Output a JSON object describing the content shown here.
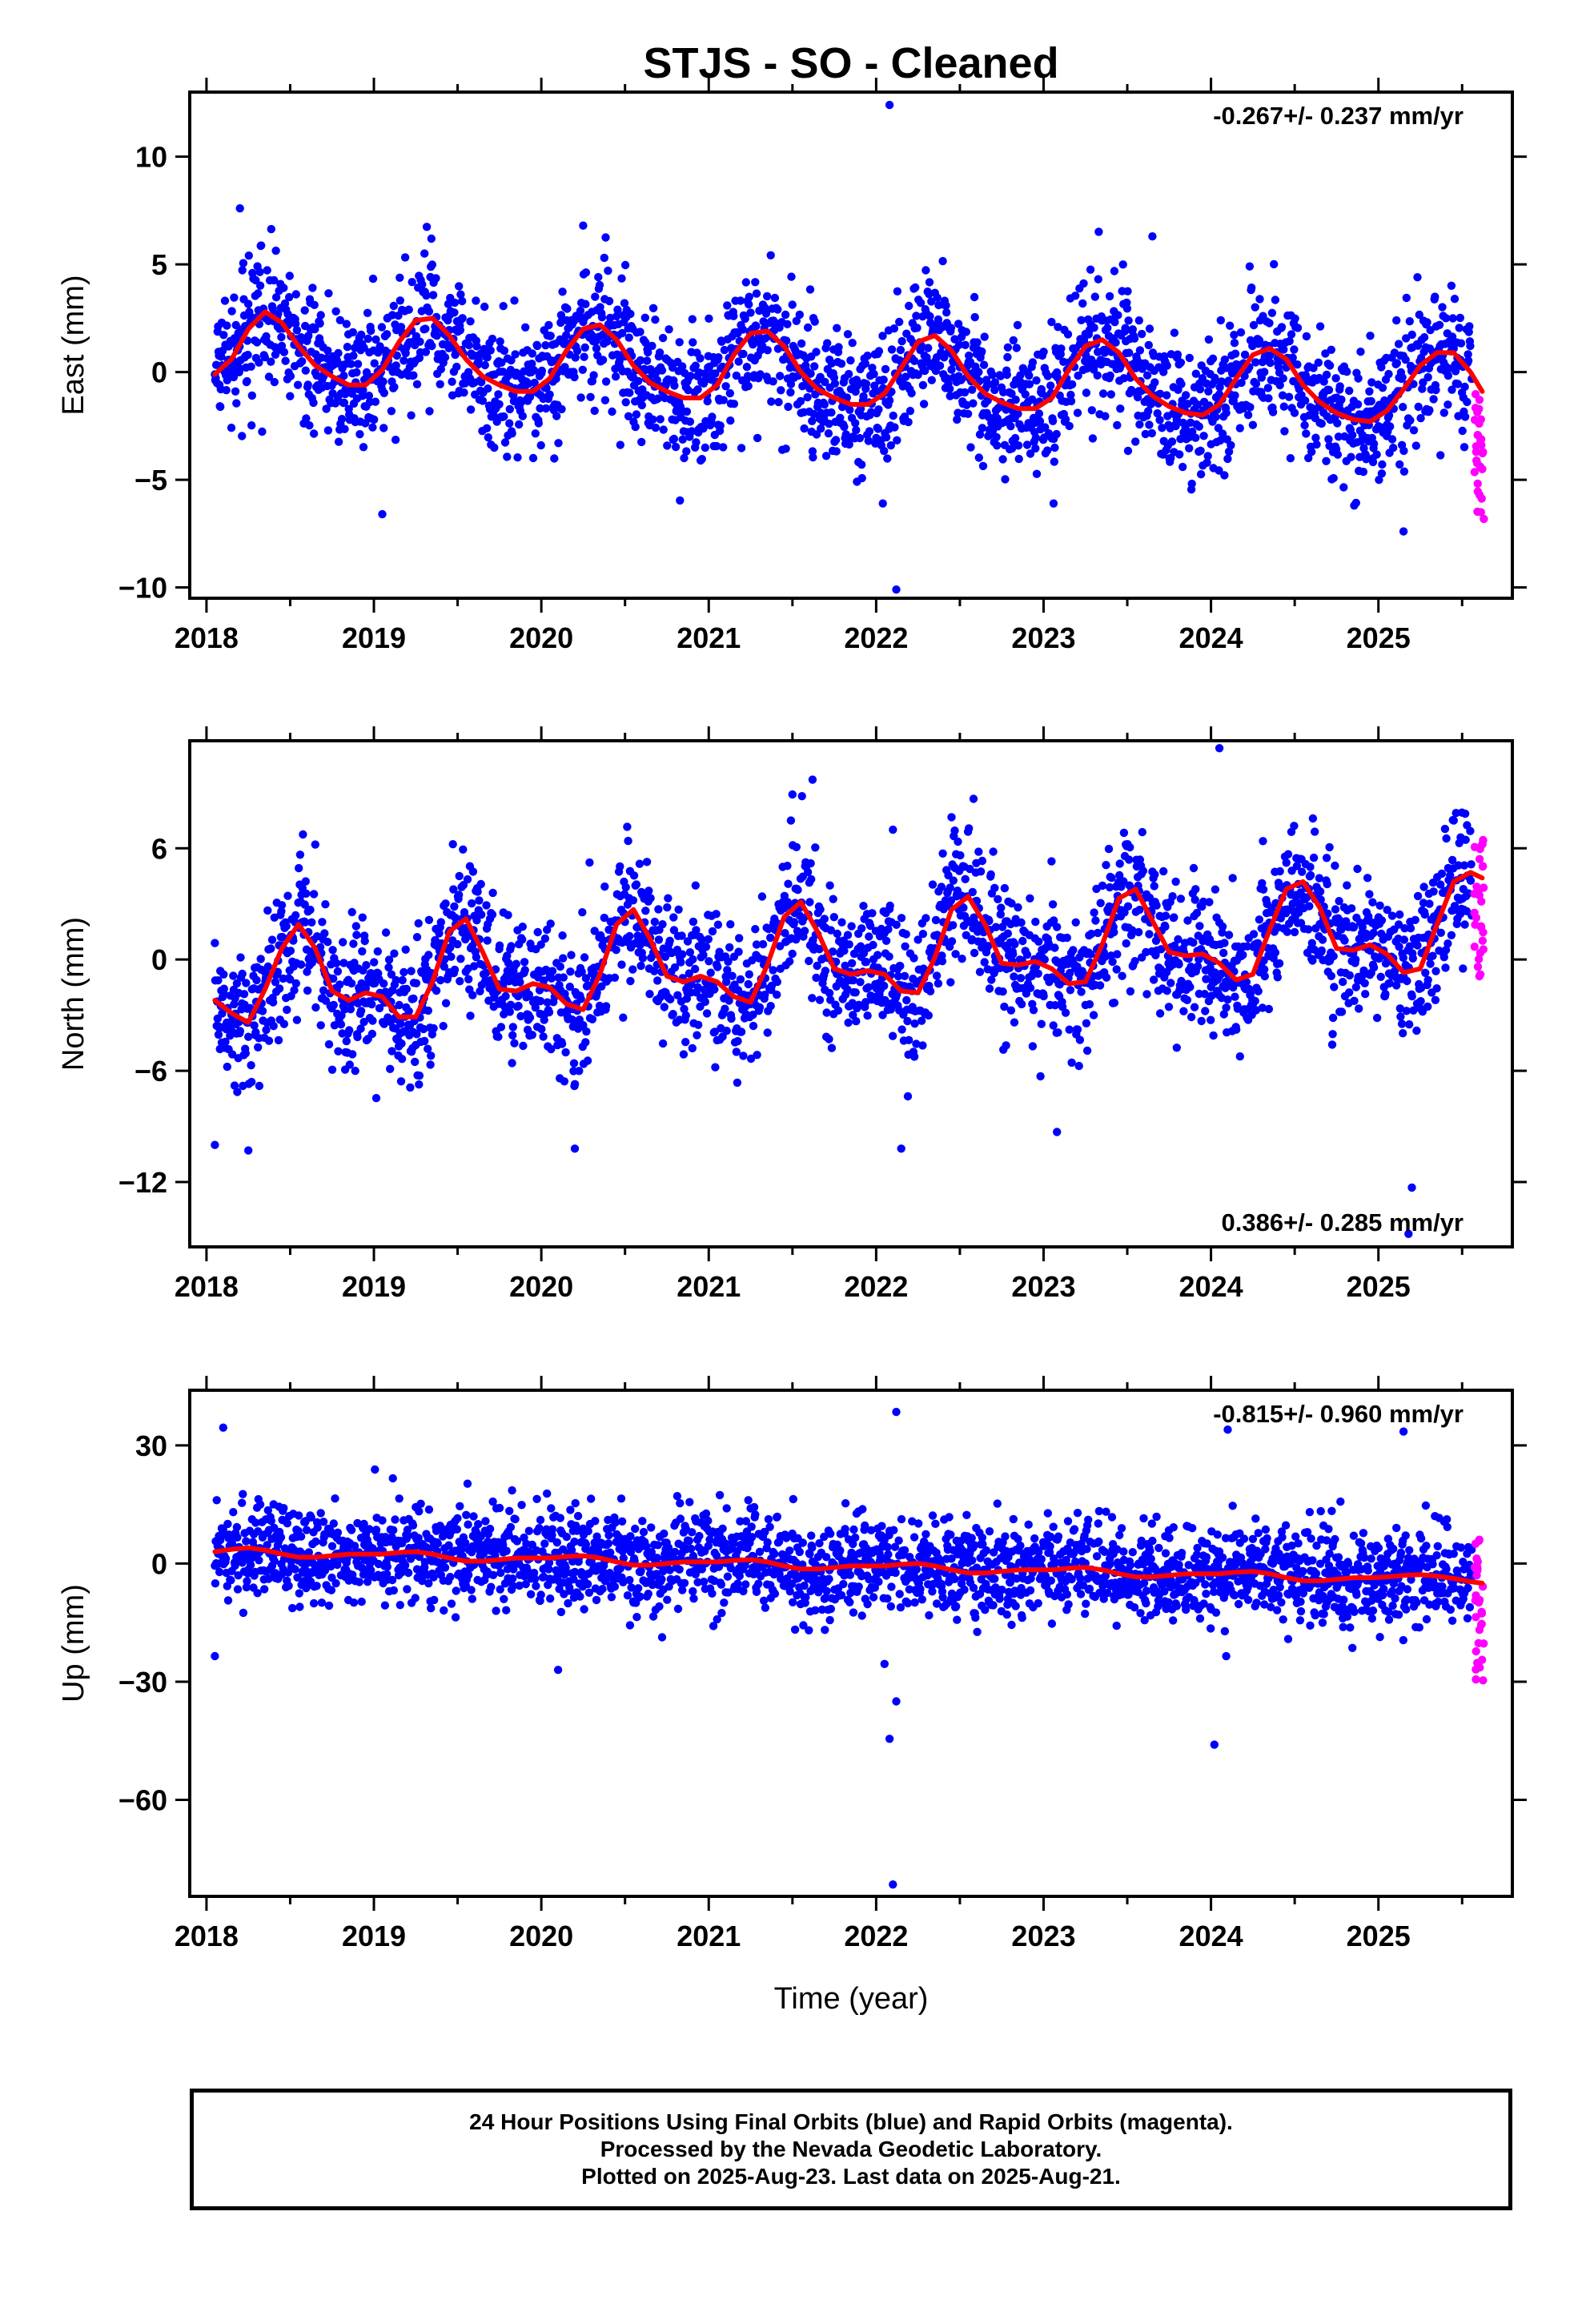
{
  "title": "STJS  - SO - Cleaned",
  "xlabel": "Time (year)",
  "footer": {
    "line1": "24 Hour Positions Using Final Orbits (blue) and Rapid Orbits (magenta).",
    "line2": "Processed by the Nevada Geodetic Laboratory.",
    "line3": "Plotted on 2025-Aug-23. Last data on 2025-Aug-21."
  },
  "colors": {
    "final": "#0000ff",
    "rapid": "#ff00ff",
    "model": "#ff0000",
    "axis": "#000000"
  },
  "chart_data": [
    {
      "type": "scatter",
      "ylabel": "East (mm)",
      "rate_label": "-0.267+/- 0.237 mm/yr",
      "xlim": [
        2017.9,
        2025.8
      ],
      "ylim": [
        -10.5,
        13
      ],
      "yticks": [
        10,
        5,
        0,
        -5,
        -10
      ],
      "ytick_labels": [
        "10",
        "5",
        "0",
        "−5",
        "−10"
      ],
      "xticks": [
        2018,
        2019,
        2020,
        2021,
        2022,
        2023,
        2024,
        2025
      ],
      "xtick_labels": [
        "2018",
        "2019",
        "2020",
        "2021",
        "2022",
        "2023",
        "2024",
        "2025"
      ],
      "model": {
        "x": [
          2018.05,
          2018.15,
          2018.25,
          2018.35,
          2018.45,
          2018.55,
          2018.65,
          2018.75,
          2018.85,
          2018.95,
          2019.05,
          2019.15,
          2019.25,
          2019.35,
          2019.45,
          2019.55,
          2019.65,
          2019.75,
          2019.85,
          2019.95,
          2020.05,
          2020.15,
          2020.25,
          2020.35,
          2020.45,
          2020.55,
          2020.65,
          2020.75,
          2020.85,
          2020.95,
          2021.05,
          2021.15,
          2021.25,
          2021.35,
          2021.45,
          2021.55,
          2021.65,
          2021.75,
          2021.85,
          2021.95,
          2022.05,
          2022.15,
          2022.25,
          2022.35,
          2022.45,
          2022.55,
          2022.65,
          2022.75,
          2022.85,
          2022.95,
          2023.05,
          2023.15,
          2023.25,
          2023.35,
          2023.45,
          2023.55,
          2023.65,
          2023.75,
          2023.85,
          2023.95,
          2024.05,
          2024.15,
          2024.25,
          2024.35,
          2024.45,
          2024.55,
          2024.65,
          2024.75,
          2024.85,
          2024.95,
          2025.05,
          2025.15,
          2025.25,
          2025.35,
          2025.45,
          2025.55,
          2025.62
        ],
        "y": [
          -0.1,
          0.6,
          2.0,
          2.8,
          2.3,
          1.2,
          0.3,
          -0.2,
          -0.6,
          -0.6,
          0.1,
          1.4,
          2.4,
          2.5,
          1.7,
          0.6,
          -0.2,
          -0.6,
          -0.9,
          -0.9,
          -0.3,
          1.0,
          2.0,
          2.2,
          1.5,
          0.3,
          -0.5,
          -0.9,
          -1.2,
          -1.2,
          -0.6,
          0.8,
          1.8,
          1.9,
          1.2,
          0.0,
          -0.8,
          -1.2,
          -1.5,
          -1.5,
          -1.0,
          0.2,
          1.4,
          1.7,
          1.0,
          -0.2,
          -1.0,
          -1.4,
          -1.7,
          -1.7,
          -1.2,
          0.1,
          1.2,
          1.5,
          0.9,
          -0.3,
          -1.1,
          -1.6,
          -1.9,
          -2.0,
          -1.5,
          -0.3,
          0.8,
          1.1,
          0.6,
          -0.6,
          -1.4,
          -1.9,
          -2.2,
          -2.3,
          -1.8,
          -0.8,
          0.3,
          0.9,
          0.9,
          0.0,
          -0.9
        ]
      },
      "seasonal": {
        "trend": -0.267,
        "offset": 0.2,
        "amp1": 1.7,
        "phase1": 0.12,
        "amp2": 0.45,
        "phase2": 0.08,
        "noise": 1.55
      },
      "outliers_final": [
        [
          2022.08,
          12.4
        ],
        [
          2022.12,
          -10.1
        ],
        [
          2018.2,
          7.6
        ],
        [
          2020.25,
          6.8
        ],
        [
          2019.05,
          -6.6
        ],
        [
          2025.15,
          -7.4
        ],
        [
          2022.04,
          -6.1
        ],
        [
          2023.06,
          -6.1
        ],
        [
          2023.65,
          6.3
        ]
      ],
      "rapid": {
        "x_start": 2025.57,
        "x_end": 2025.63,
        "count": 30,
        "y_min": -7.3,
        "y_max": -0.8
      }
    },
    {
      "type": "scatter",
      "ylabel": "North (mm)",
      "rate_label": "0.386+/- 0.285 mm/yr",
      "xlim": [
        2017.9,
        2025.8
      ],
      "ylim": [
        -15.5,
        11.8
      ],
      "yticks": [
        6,
        0,
        -6,
        -12
      ],
      "ytick_labels": [
        "6",
        "0",
        "−6",
        "−12"
      ],
      "xticks": [
        2018,
        2019,
        2020,
        2021,
        2022,
        2023,
        2024,
        2025
      ],
      "xtick_labels": [
        "2018",
        "2019",
        "2020",
        "2021",
        "2022",
        "2023",
        "2024",
        "2025"
      ],
      "model": {
        "x": [
          2018.05,
          2018.15,
          2018.25,
          2018.35,
          2018.45,
          2018.55,
          2018.65,
          2018.75,
          2018.85,
          2018.95,
          2019.05,
          2019.15,
          2019.25,
          2019.35,
          2019.45,
          2019.55,
          2019.65,
          2019.75,
          2019.85,
          2019.95,
          2020.05,
          2020.15,
          2020.25,
          2020.35,
          2020.45,
          2020.55,
          2020.65,
          2020.75,
          2020.85,
          2020.95,
          2021.05,
          2021.15,
          2021.25,
          2021.35,
          2021.45,
          2021.55,
          2021.65,
          2021.75,
          2021.85,
          2021.95,
          2022.05,
          2022.15,
          2022.25,
          2022.35,
          2022.45,
          2022.55,
          2022.65,
          2022.75,
          2022.85,
          2022.95,
          2023.05,
          2023.15,
          2023.25,
          2023.35,
          2023.45,
          2023.55,
          2023.65,
          2023.75,
          2023.85,
          2023.95,
          2024.05,
          2024.15,
          2024.25,
          2024.35,
          2024.45,
          2024.55,
          2024.65,
          2024.75,
          2024.85,
          2024.95,
          2025.05,
          2025.15,
          2025.25,
          2025.35,
          2025.45,
          2025.55,
          2025.62
        ],
        "y": [
          -2.2,
          -2.9,
          -3.4,
          -1.6,
          0.6,
          1.9,
          0.6,
          -1.7,
          -2.2,
          -1.8,
          -2.0,
          -3.1,
          -3.1,
          -1.2,
          1.5,
          2.2,
          0.4,
          -1.6,
          -1.7,
          -1.3,
          -1.5,
          -2.4,
          -2.7,
          -0.8,
          1.9,
          2.7,
          1.1,
          -0.9,
          -1.2,
          -0.9,
          -1.2,
          -2.0,
          -2.3,
          -0.3,
          2.3,
          3.1,
          1.5,
          -0.5,
          -0.8,
          -0.6,
          -0.8,
          -1.7,
          -1.8,
          0.1,
          2.7,
          3.4,
          1.9,
          -0.2,
          -0.3,
          -0.1,
          -0.5,
          -1.3,
          -1.2,
          0.8,
          3.3,
          3.8,
          2.1,
          0.4,
          0.2,
          0.3,
          -0.2,
          -1.1,
          -0.8,
          1.6,
          3.8,
          4.2,
          2.8,
          0.6,
          0.5,
          0.8,
          0.3,
          -0.7,
          -0.5,
          1.9,
          4.2,
          4.7,
          4.4
        ]
      },
      "seasonal": {
        "trend": 0.386,
        "offset": -0.8,
        "amp1": 2.6,
        "phase1": 0.58,
        "amp2": 0.9,
        "phase2": 0.3,
        "noise": 1.9
      },
      "outliers_final": [
        [
          2024.05,
          11.4
        ],
        [
          2021.62,
          9.7
        ],
        [
          2021.5,
          8.9
        ],
        [
          2018.05,
          -10.0
        ],
        [
          2018.25,
          -10.3
        ],
        [
          2020.2,
          -10.2
        ],
        [
          2022.15,
          -10.2
        ],
        [
          2023.08,
          -9.3
        ],
        [
          2025.2,
          -12.3
        ],
        [
          2025.18,
          -14.8
        ],
        [
          2022.1,
          7.0
        ],
        [
          2018.65,
          6.2
        ]
      ],
      "rapid": {
        "x_start": 2025.57,
        "x_end": 2025.63,
        "count": 30,
        "y_min": -0.9,
        "y_max": 6.8
      }
    },
    {
      "type": "scatter",
      "ylabel": "Up (mm)",
      "rate_label": "-0.815+/- 0.960 mm/yr",
      "xlim": [
        2017.9,
        2025.8
      ],
      "ylim": [
        -84.5,
        44
      ],
      "yticks": [
        30,
        0,
        -30,
        -60
      ],
      "ytick_labels": [
        "30",
        "0",
        "−30",
        "−60"
      ],
      "xticks": [
        2018,
        2019,
        2020,
        2021,
        2022,
        2023,
        2024,
        2025
      ],
      "xtick_labels": [
        "2018",
        "2019",
        "2020",
        "2021",
        "2022",
        "2023",
        "2024",
        "2025"
      ],
      "model": {
        "x": [
          2018.05,
          2018.15,
          2018.25,
          2018.35,
          2018.45,
          2018.55,
          2018.65,
          2018.75,
          2018.85,
          2018.95,
          2019.05,
          2019.15,
          2019.25,
          2019.35,
          2019.45,
          2019.55,
          2019.65,
          2019.75,
          2019.85,
          2019.95,
          2020.05,
          2020.15,
          2020.25,
          2020.35,
          2020.45,
          2020.55,
          2020.65,
          2020.75,
          2020.85,
          2020.95,
          2021.05,
          2021.15,
          2021.25,
          2021.35,
          2021.45,
          2021.55,
          2021.65,
          2021.75,
          2021.85,
          2021.95,
          2022.05,
          2022.15,
          2022.25,
          2022.35,
          2022.45,
          2022.55,
          2022.65,
          2022.75,
          2022.85,
          2022.95,
          2023.05,
          2023.15,
          2023.25,
          2023.35,
          2023.45,
          2023.55,
          2023.65,
          2023.75,
          2023.85,
          2023.95,
          2024.05,
          2024.15,
          2024.25,
          2024.35,
          2024.45,
          2024.55,
          2024.65,
          2024.75,
          2024.85,
          2024.95,
          2025.05,
          2025.15,
          2025.25,
          2025.35,
          2025.45,
          2025.55,
          2025.62
        ],
        "y": [
          3.0,
          3.6,
          4.0,
          3.4,
          2.4,
          1.6,
          1.6,
          2.0,
          2.4,
          2.4,
          2.4,
          2.8,
          3.0,
          2.4,
          1.4,
          0.6,
          0.6,
          1.0,
          1.4,
          1.4,
          1.4,
          1.8,
          2.0,
          1.4,
          0.4,
          -0.4,
          -0.4,
          0.0,
          0.4,
          0.4,
          0.4,
          0.8,
          1.0,
          0.4,
          -0.6,
          -1.4,
          -1.4,
          -1.0,
          -0.6,
          -0.6,
          -0.6,
          -0.2,
          0.0,
          -0.6,
          -1.6,
          -2.4,
          -2.4,
          -2.0,
          -1.6,
          -1.6,
          -1.6,
          -1.2,
          -1.0,
          -1.6,
          -2.6,
          -3.4,
          -3.4,
          -3.0,
          -2.6,
          -2.6,
          -2.6,
          -2.2,
          -2.0,
          -2.6,
          -3.6,
          -4.4,
          -4.4,
          -4.0,
          -3.6,
          -3.6,
          -3.4,
          -3.0,
          -2.8,
          -3.2,
          -3.8,
          -4.6,
          -5.0
        ]
      },
      "seasonal": {
        "trend": -0.815,
        "offset": 2.5,
        "amp1": 1.4,
        "phase1": 0.2,
        "amp2": 0.4,
        "phase2": 0.1,
        "noise": 6.2
      },
      "outliers_final": [
        [
          2022.12,
          38.5
        ],
        [
          2018.1,
          34.5
        ],
        [
          2022.1,
          -81.5
        ],
        [
          2024.02,
          -46.0
        ],
        [
          2022.08,
          -44.5
        ],
        [
          2022.12,
          -35.0
        ],
        [
          2018.05,
          -23.5
        ],
        [
          2025.15,
          33.5
        ],
        [
          2024.1,
          34.0
        ],
        [
          2020.1,
          -27.0
        ],
        [
          2022.05,
          -25.5
        ]
      ],
      "rapid": {
        "x_start": 2025.57,
        "x_end": 2025.63,
        "count": 30,
        "y_min": -32.0,
        "y_max": 8.0
      }
    }
  ]
}
